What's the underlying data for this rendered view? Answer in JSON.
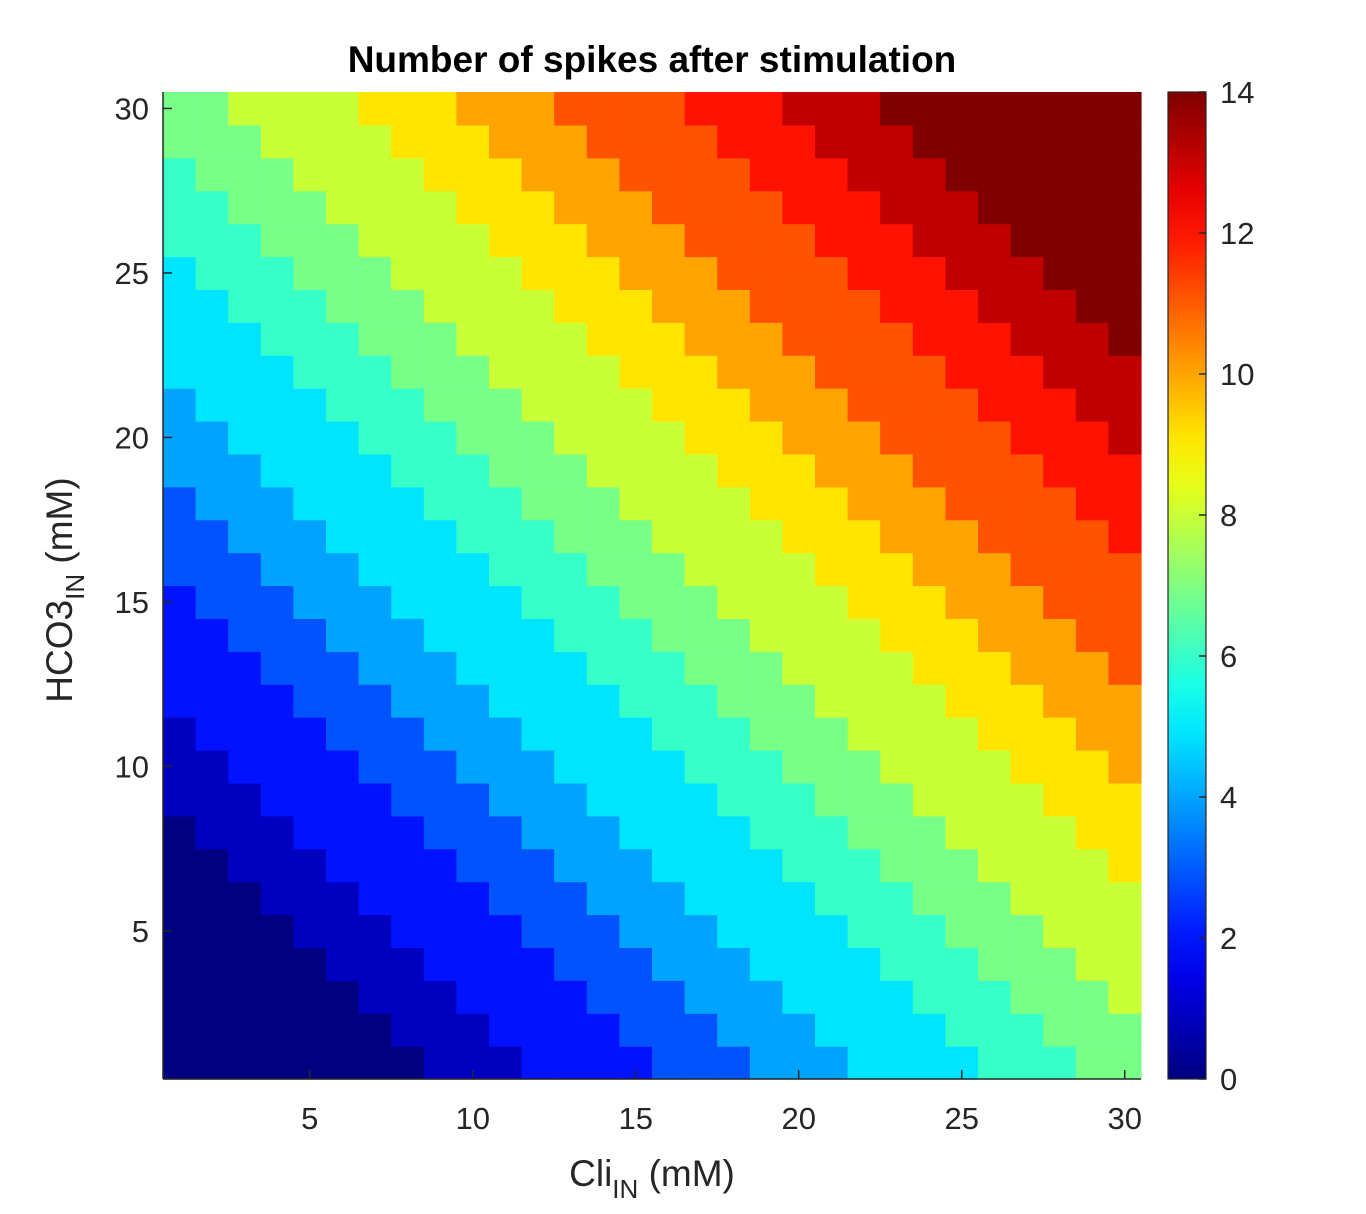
{
  "chart_data": {
    "type": "heatmap",
    "title": "Number of spikes after stimulation",
    "xlabel": {
      "main": "Cli",
      "sub": "IN",
      "suffix": " (mM)"
    },
    "ylabel": {
      "main": "HCO3",
      "sub": "IN",
      "suffix": " (mM)"
    },
    "x_range": [
      1,
      30
    ],
    "y_range": [
      1,
      30
    ],
    "x_ticks": [
      5,
      10,
      15,
      20,
      25,
      30
    ],
    "y_ticks": [
      5,
      10,
      15,
      20,
      25,
      30
    ],
    "colorbar": {
      "colormap": "jet",
      "range": [
        0,
        14
      ],
      "ticks": [
        0,
        2,
        4,
        6,
        8,
        10,
        12,
        14
      ]
    },
    "model": "approximate: value ≈ (cli + hco3 - 8) * 0.3, clipped to [0, 14]; bands run diagonally, 0 at bottom-left, 14 at top-right"
  }
}
